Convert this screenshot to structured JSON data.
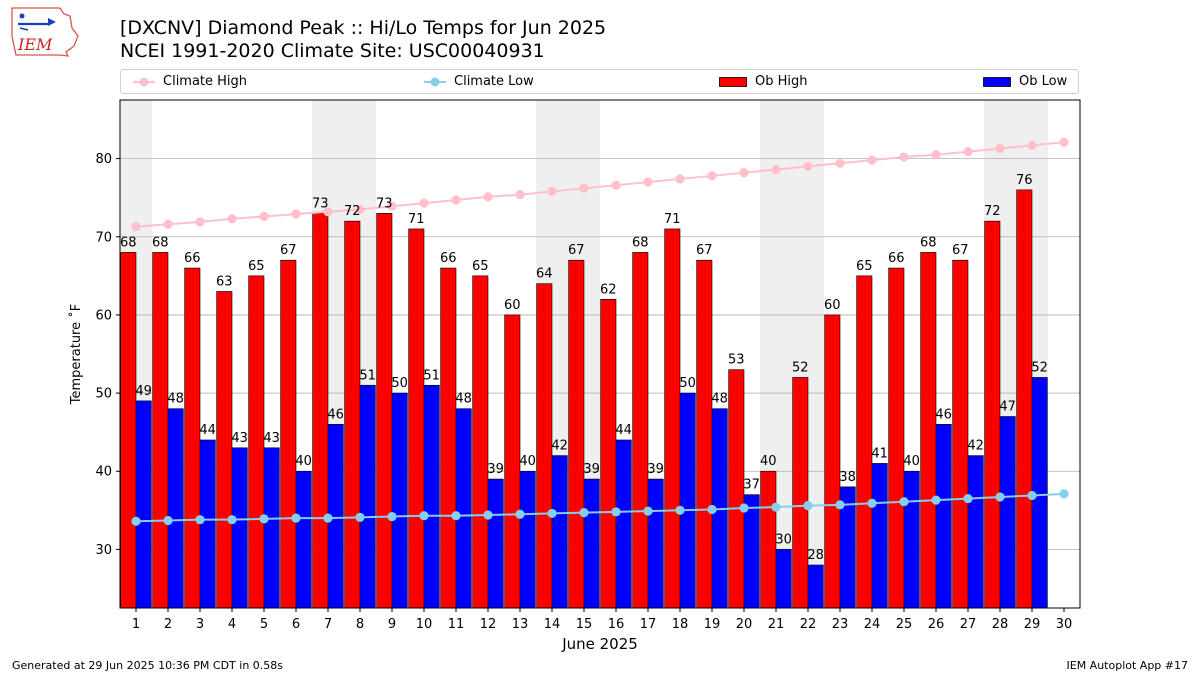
{
  "title": {
    "line1": "[DXCNV] Diamond Peak :: Hi/Lo Temps for Jun 2025",
    "line2": "NCEI 1991-2020 Climate Site: USC00040931"
  },
  "logo_text": "IEM",
  "footer": {
    "left": "Generated at 29 Jun 2025 10:36 PM CDT in 0.58s",
    "right": "IEM Autoplot App #17"
  },
  "colors": {
    "climate_high": "#ffc0cb",
    "climate_low": "#87ceeb",
    "ob_high": "#ff0000",
    "ob_low": "#0000ff",
    "weekend_shade": "#efefef",
    "grid": "#b0b0b0"
  },
  "chart_data": {
    "type": "bar",
    "xlabel": "June 2025",
    "ylabel": "Temperature ˚F",
    "ylim": [
      22.5,
      87.5
    ],
    "yticks": [
      30,
      40,
      50,
      60,
      70,
      80
    ],
    "xlim": [
      0.5,
      30.5
    ],
    "grid": "horizontal",
    "legend_placement": "top",
    "x": [
      1,
      2,
      3,
      4,
      5,
      6,
      7,
      8,
      9,
      10,
      11,
      12,
      13,
      14,
      15,
      16,
      17,
      18,
      19,
      20,
      21,
      22,
      23,
      24,
      25,
      26,
      27,
      28,
      29,
      30
    ],
    "weekend_days": [
      1,
      7,
      8,
      14,
      15,
      21,
      22,
      28,
      29
    ],
    "series": [
      {
        "name": "Climate High",
        "kind": "line",
        "values": [
          71.3,
          71.6,
          71.9,
          72.3,
          72.6,
          72.9,
          73.2,
          73.5,
          73.9,
          74.3,
          74.7,
          75.1,
          75.4,
          75.8,
          76.2,
          76.6,
          77.0,
          77.4,
          77.8,
          78.2,
          78.6,
          79.0,
          79.4,
          79.8,
          80.2,
          80.5,
          80.9,
          81.3,
          81.7,
          82.1
        ]
      },
      {
        "name": "Climate Low",
        "kind": "line",
        "values": [
          33.6,
          33.7,
          33.8,
          33.8,
          33.9,
          34.0,
          34.0,
          34.1,
          34.2,
          34.3,
          34.3,
          34.4,
          34.5,
          34.6,
          34.7,
          34.8,
          34.9,
          35.0,
          35.1,
          35.3,
          35.4,
          35.6,
          35.7,
          35.9,
          36.1,
          36.3,
          36.5,
          36.7,
          36.9,
          37.1
        ]
      },
      {
        "name": "Ob High",
        "kind": "bar",
        "values": [
          68,
          68,
          66,
          63,
          65,
          67,
          73,
          72,
          73,
          71,
          66,
          65,
          60,
          64,
          67,
          62,
          68,
          71,
          67,
          53,
          40,
          52,
          60,
          65,
          66,
          68,
          67,
          72,
          76,
          null
        ]
      },
      {
        "name": "Ob Low",
        "kind": "bar",
        "values": [
          49,
          48,
          44,
          43,
          43,
          40,
          46,
          51,
          50,
          51,
          48,
          39,
          40,
          42,
          39,
          44,
          39,
          50,
          48,
          37,
          30,
          28,
          38,
          41,
          40,
          46,
          42,
          47,
          52,
          null
        ]
      }
    ]
  }
}
